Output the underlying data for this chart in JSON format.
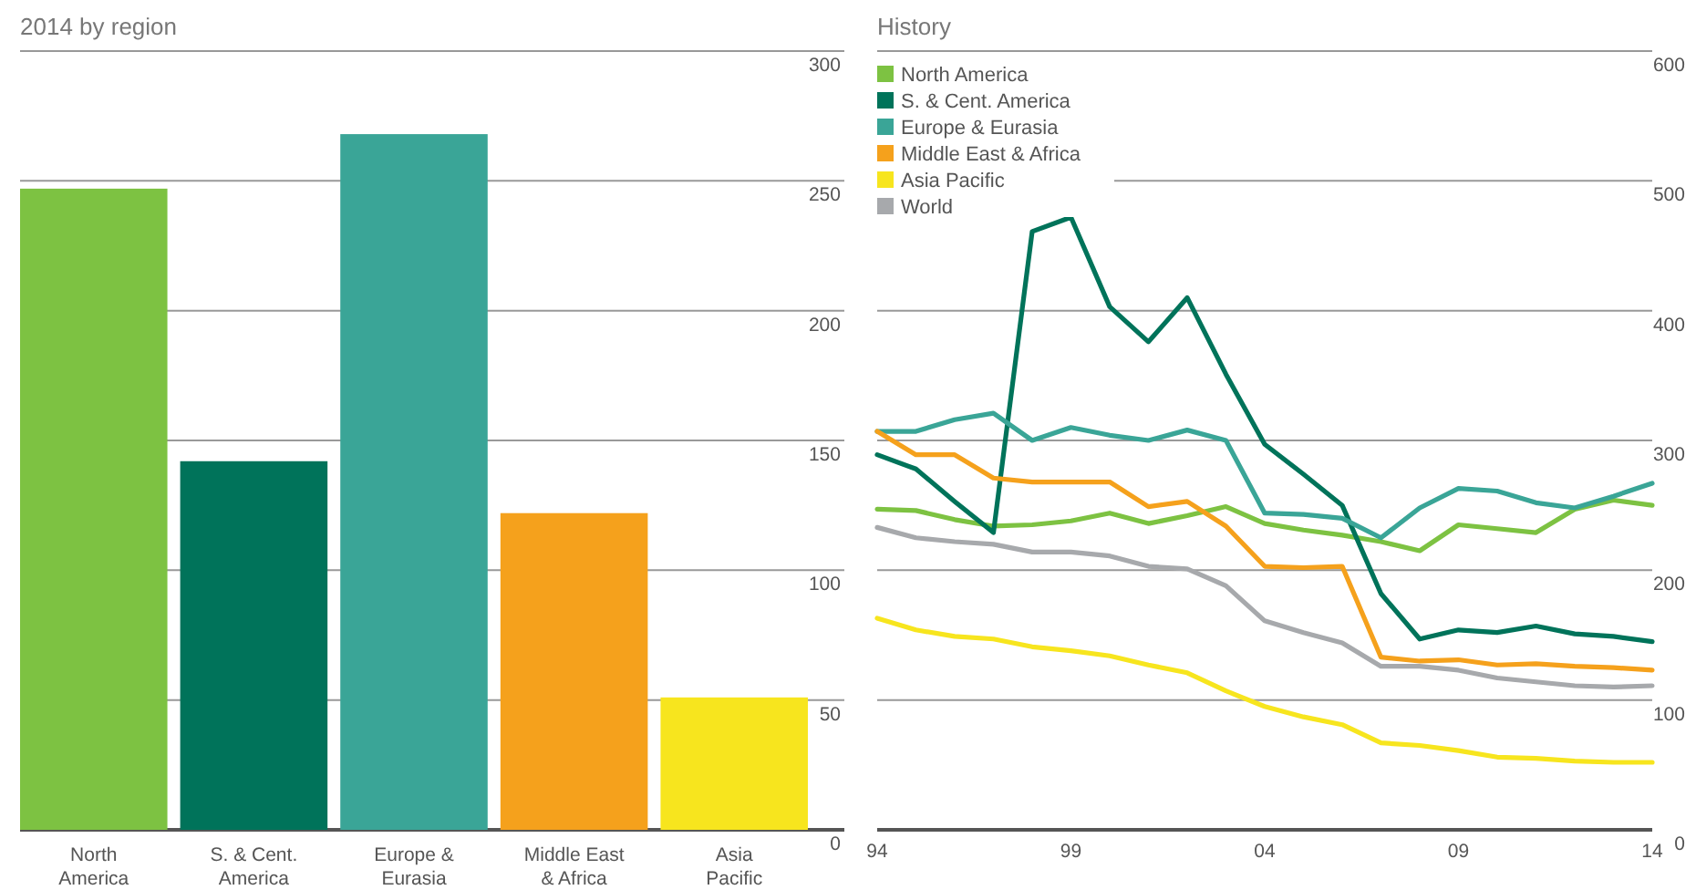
{
  "chart_data": [
    {
      "type": "bar",
      "title": "2014 by region",
      "categories": [
        "North America",
        "S. & Cent. America",
        "Europe & Eurasia",
        "Middle East & Africa",
        "Asia Pacific"
      ],
      "values": [
        247,
        142,
        268,
        122,
        51
      ],
      "colors": [
        "#7dc242",
        "#00735a",
        "#3aa597",
        "#f5a11c",
        "#f7e51e"
      ],
      "ylim": [
        0,
        300
      ],
      "yticks": [
        0,
        50,
        100,
        150,
        200,
        250,
        300
      ],
      "grid": "y"
    },
    {
      "type": "line",
      "title": "History",
      "x": [
        1994,
        1995,
        1996,
        1997,
        1998,
        1999,
        2000,
        2001,
        2002,
        2003,
        2004,
        2005,
        2006,
        2007,
        2008,
        2009,
        2010,
        2011,
        2012,
        2013,
        2014
      ],
      "series": [
        {
          "name": "North America",
          "color": "#7dc242",
          "values": [
            247,
            246,
            239,
            234,
            235,
            238,
            244,
            236,
            242,
            249,
            236,
            231,
            227,
            222,
            215,
            235,
            232,
            229,
            247,
            254,
            250
          ]
        },
        {
          "name": "S. & Cent. America",
          "color": "#00735a",
          "values": [
            289,
            278,
            253,
            229,
            461,
            472,
            403,
            376,
            410,
            351,
            297,
            274,
            250,
            182,
            147,
            154,
            152,
            157,
            151,
            149,
            145
          ]
        },
        {
          "name": "Europe & Eurasia",
          "color": "#3aa597",
          "values": [
            307,
            307,
            316,
            321,
            300,
            310,
            304,
            300,
            308,
            300,
            244,
            243,
            240,
            225,
            248,
            263,
            261,
            252,
            248,
            257,
            267
          ]
        },
        {
          "name": "Middle East & Africa",
          "color": "#f5a11c",
          "values": [
            307,
            289,
            289,
            271,
            268,
            268,
            268,
            249,
            253,
            234,
            203,
            202,
            203,
            133,
            130,
            131,
            127,
            128,
            126,
            125,
            123
          ]
        },
        {
          "name": "Asia Pacific",
          "color": "#f7e51e",
          "values": [
            163,
            154,
            149,
            147,
            141,
            138,
            134,
            127,
            121,
            107,
            95,
            87,
            81,
            67,
            65,
            61,
            56,
            55,
            53,
            52,
            52
          ]
        },
        {
          "name": "World",
          "color": "#a7a9ac",
          "values": [
            233,
            225,
            222,
            220,
            214,
            214,
            211,
            203,
            201,
            188,
            161,
            152,
            144,
            126,
            126,
            123,
            117,
            114,
            111,
            110,
            111
          ]
        }
      ],
      "xlim": [
        1994,
        2014
      ],
      "xticks": [
        {
          "value": 1994,
          "label": "94"
        },
        {
          "value": 1999,
          "label": "99"
        },
        {
          "value": 2004,
          "label": "04"
        },
        {
          "value": 2009,
          "label": "09"
        },
        {
          "value": 2014,
          "label": "14"
        }
      ],
      "ylim": [
        0,
        600
      ],
      "yticks": [
        0,
        100,
        200,
        300,
        400,
        500,
        600
      ],
      "grid": "y",
      "legend": "top left",
      "marker": "none",
      "line_style": "solid"
    }
  ]
}
